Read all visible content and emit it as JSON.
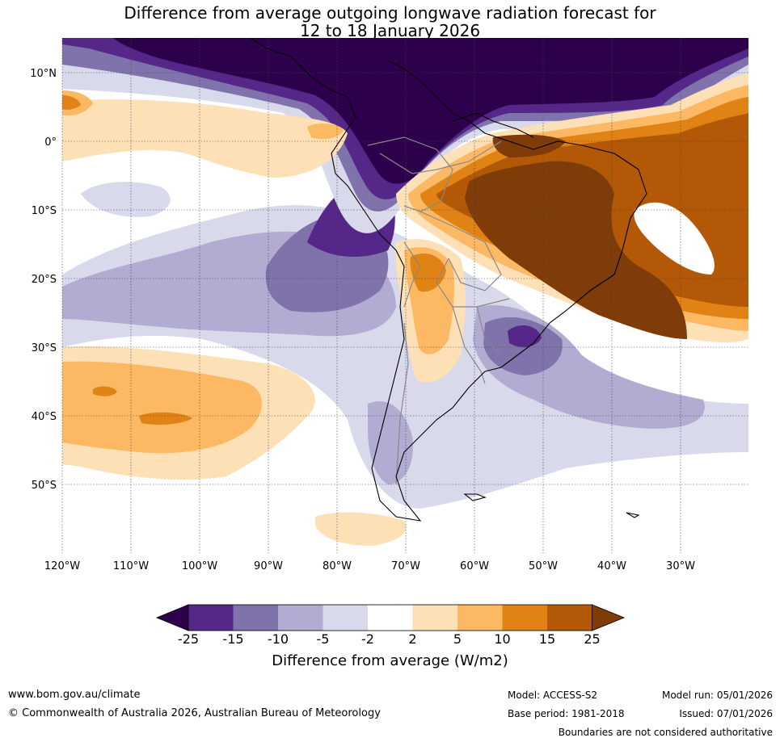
{
  "title_line1": "Difference from average outgoing longwave radiation forecast for",
  "title_line2": "12 to 18 January 2026",
  "lat_labels": [
    "10°N",
    "0°",
    "10°S",
    "20°S",
    "30°S",
    "40°S",
    "50°S"
  ],
  "lon_labels": [
    "120°W",
    "110°W",
    "100°W",
    "90°W",
    "80°W",
    "70°W",
    "60°W",
    "50°W",
    "40°W",
    "30°W"
  ],
  "colorbar": {
    "ticks": [
      "-25",
      "-15",
      "-10",
      "-5",
      "-2",
      "2",
      "5",
      "10",
      "15",
      "25"
    ],
    "colors": [
      "#2d004b",
      "#542788",
      "#8073ac",
      "#b2abd2",
      "#d8daeb",
      "#ffffff",
      "#fee0b6",
      "#fdb863",
      "#e08214",
      "#b35806",
      "#7f3b08"
    ],
    "label": "Difference from average (W/m2)"
  },
  "footer": {
    "website": "www.bom.gov.au/climate",
    "copyright": "© Commonwealth of Australia 2026, Australian Bureau of Meteorology",
    "model": "Model: ACCESS-S2",
    "base_period": "Base period: 1981-2018",
    "model_run": "Model run: 05/01/2026",
    "issued": "Issued: 07/01/2026",
    "disclaimer": "Boundaries are not considered authoritative"
  }
}
